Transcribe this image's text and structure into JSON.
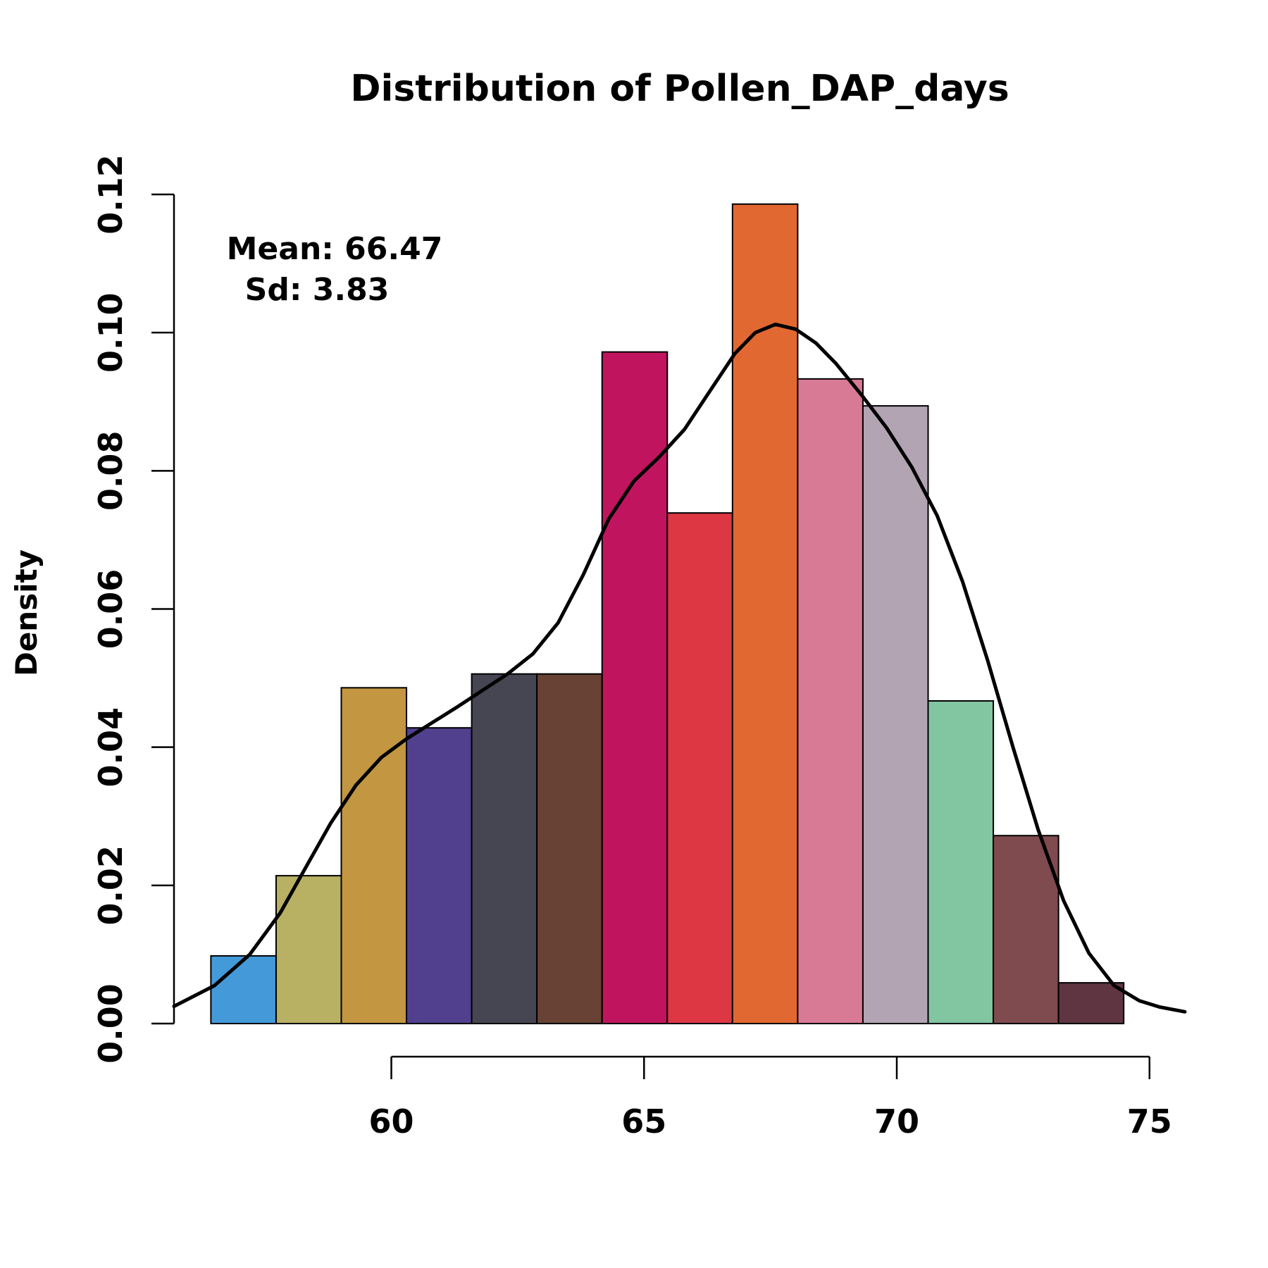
{
  "chart_data": {
    "type": "bar",
    "title": "Distribution of Pollen_DAP_days",
    "xlabel": "",
    "ylabel": "Density",
    "xlim": [
      55.7,
      75.7
    ],
    "ylim": [
      0,
      0.12
    ],
    "x_ticks": [
      60,
      65,
      70,
      75
    ],
    "y_ticks": [
      "0.00",
      "0.02",
      "0.04",
      "0.06",
      "0.08",
      "0.10",
      "0.12"
    ],
    "grid": false,
    "bins": [
      {
        "x0": 56.43,
        "x1": 57.72,
        "value": 0.0098,
        "color": "#4499d9"
      },
      {
        "x0": 57.72,
        "x1": 59.01,
        "value": 0.0214,
        "color": "#b8b063"
      },
      {
        "x0": 59.01,
        "x1": 60.3,
        "value": 0.0486,
        "color": "#c39642"
      },
      {
        "x0": 60.3,
        "x1": 61.59,
        "value": 0.0428,
        "color": "#50408d"
      },
      {
        "x0": 61.59,
        "x1": 62.88,
        "value": 0.0506,
        "color": "#464552"
      },
      {
        "x0": 62.88,
        "x1": 64.17,
        "value": 0.0506,
        "color": "#684234"
      },
      {
        "x0": 64.17,
        "x1": 65.46,
        "value": 0.0972,
        "color": "#c0155e"
      },
      {
        "x0": 65.46,
        "x1": 66.75,
        "value": 0.0739,
        "color": "#dd3744"
      },
      {
        "x0": 66.75,
        "x1": 68.04,
        "value": 0.1186,
        "color": "#e26832"
      },
      {
        "x0": 68.04,
        "x1": 69.33,
        "value": 0.0933,
        "color": "#d87a96"
      },
      {
        "x0": 69.33,
        "x1": 70.62,
        "value": 0.0894,
        "color": "#b2a4b2"
      },
      {
        "x0": 70.62,
        "x1": 71.91,
        "value": 0.0467,
        "color": "#82c5a1"
      },
      {
        "x0": 71.91,
        "x1": 73.2,
        "value": 0.0272,
        "color": "#7f4b4e"
      },
      {
        "x0": 73.2,
        "x1": 74.49,
        "value": 0.0059,
        "color": "#5e3540"
      }
    ],
    "density_curve": {
      "x": [
        55.7,
        56.5,
        57.2,
        57.8,
        58.3,
        58.8,
        59.3,
        59.8,
        60.3,
        60.8,
        61.3,
        61.8,
        62.3,
        62.8,
        63.3,
        63.8,
        64.3,
        64.8,
        65.3,
        65.8,
        66.3,
        66.8,
        67.2,
        67.6,
        68.0,
        68.4,
        68.8,
        69.3,
        69.8,
        70.3,
        70.8,
        71.3,
        71.8,
        72.3,
        72.8,
        73.3,
        73.8,
        74.3,
        74.8,
        75.2,
        75.7
      ],
      "y": [
        0.0025,
        0.0055,
        0.01,
        0.016,
        0.0225,
        0.029,
        0.0345,
        0.0385,
        0.0412,
        0.0435,
        0.0458,
        0.0482,
        0.0506,
        0.0535,
        0.058,
        0.065,
        0.073,
        0.0785,
        0.082,
        0.086,
        0.0915,
        0.097,
        0.1,
        0.1012,
        0.1005,
        0.0985,
        0.0955,
        0.091,
        0.0862,
        0.0805,
        0.0735,
        0.064,
        0.0525,
        0.04,
        0.028,
        0.0178,
        0.0102,
        0.0055,
        0.0033,
        0.0024,
        0.0017
      ]
    },
    "annotations": {
      "mean": "Mean: 66.47",
      "sd": "Sd: 3.83"
    }
  }
}
